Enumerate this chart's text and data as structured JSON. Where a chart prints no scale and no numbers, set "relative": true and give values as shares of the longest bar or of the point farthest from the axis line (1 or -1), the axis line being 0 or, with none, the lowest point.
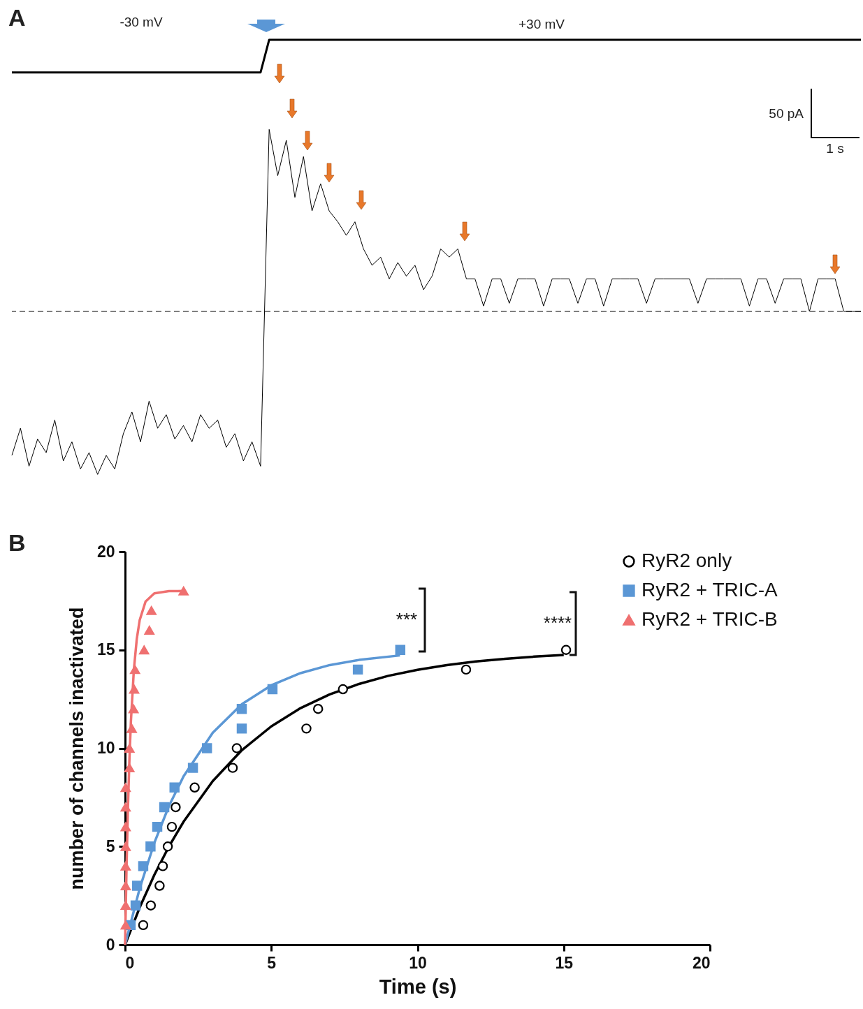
{
  "chart_data": [
    {
      "type": "line",
      "title": "A",
      "relative": true,
      "categories": [
        null,
        null,
        null,
        null,
        null,
        null,
        null,
        null,
        null,
        null,
        null,
        null,
        null,
        null,
        null,
        null,
        null,
        null,
        null,
        null,
        null,
        null,
        null,
        null,
        null,
        null,
        null,
        null,
        null,
        null,
        null,
        null,
        null,
        null,
        null,
        null,
        null,
        null,
        null,
        null,
        null,
        null,
        null,
        null,
        null,
        null,
        null,
        null,
        null,
        null,
        null,
        null,
        null,
        null,
        null,
        null,
        null,
        null,
        null,
        null,
        null,
        null,
        null,
        null,
        null,
        null,
        null,
        null,
        null,
        null,
        null,
        null,
        null,
        null,
        null,
        null,
        null,
        null,
        null,
        null,
        null,
        null,
        null,
        null,
        null,
        null,
        null,
        null,
        null,
        null,
        null,
        null,
        null,
        null,
        null,
        null,
        null,
        null,
        null,
        null
      ],
      "series": [
        {
          "color": "#000000",
          "values": [
            0.88,
            0.88,
            0.88,
            0.88,
            0.88,
            0.88,
            0.88,
            0.88,
            0.88,
            0.88,
            0.88,
            0.88,
            0.88,
            0.88,
            0.88,
            0.88,
            0.88,
            0.88,
            0.88,
            0.88,
            0.88,
            0.88,
            0.88,
            0.88,
            0.88,
            0.88,
            0.88,
            0.88,
            0.88,
            0.88,
            1,
            1,
            1,
            1,
            1,
            1,
            1,
            1,
            1,
            1,
            1,
            1,
            1,
            1,
            1,
            1,
            1,
            1,
            1,
            1,
            1,
            1,
            1,
            1,
            1,
            1,
            1,
            1,
            1,
            1,
            1,
            1,
            1,
            1,
            1,
            1,
            1,
            1,
            1,
            1,
            1,
            1,
            1,
            1,
            1,
            1,
            1,
            1,
            1,
            1,
            1,
            1,
            1,
            1,
            1,
            1,
            1,
            1,
            1,
            1,
            1,
            1,
            1,
            1,
            1,
            1,
            1,
            1,
            1,
            1
          ]
        },
        {
          "color": "#000000",
          "values": [
            -0.53,
            -0.43,
            -0.57,
            -0.47,
            -0.52,
            -0.4,
            -0.55,
            -0.48,
            -0.58,
            -0.52,
            -0.6,
            -0.53,
            -0.58,
            -0.45,
            -0.37,
            -0.48,
            -0.33,
            -0.43,
            -0.38,
            -0.47,
            -0.42,
            -0.48,
            -0.38,
            -0.43,
            -0.4,
            -0.5,
            -0.45,
            -0.55,
            -0.48,
            -0.57,
            0.67,
            0.5,
            0.63,
            0.42,
            0.57,
            0.37,
            0.47,
            0.37,
            0.33,
            0.28,
            0.33,
            0.23,
            0.17,
            0.2,
            0.12,
            0.18,
            0.13,
            0.17,
            0.08,
            0.13,
            0.23,
            0.2,
            0.23,
            0.12,
            0.12,
            0.02,
            0.12,
            0.12,
            0.03,
            0.12,
            0.12,
            0.12,
            0.02,
            0.12,
            0.12,
            0.12,
            0.03,
            0.12,
            0.12,
            0.02,
            0.12,
            0.12,
            0.12,
            0.12,
            0.03,
            0.12,
            0.12,
            0.12,
            0.12,
            0.12,
            0.03,
            0.12,
            0.12,
            0.12,
            0.12,
            0.12,
            0.02,
            0.12,
            0.12,
            0.03,
            0.12,
            0.12,
            0.12,
            0,
            0.12,
            0.12,
            0.12,
            0,
            0,
            0
          ]
        }
      ],
      "ref_lines": [
        {
          "axis": "y",
          "value": 0,
          "line_style": "dashed",
          "color": "#000000"
        }
      ],
      "annotations": [
        "-30 mV",
        "+30 mV",
        "50 pA",
        "1 s"
      ]
    },
    {
      "type": "scatter",
      "title": "B",
      "xlabel": "Time (s)",
      "ylabel": "number of channels inactivated",
      "xlim": [
        0,
        20
      ],
      "ylim": [
        0,
        20
      ],
      "xticks": [
        0,
        5,
        10,
        15,
        20
      ],
      "yticks": [
        0,
        5,
        10,
        15,
        20
      ],
      "grid": false,
      "legend": "top right",
      "series": [
        {
          "name": "RyR2 only",
          "type": "scatter",
          "marker": "circle",
          "color": "#000000",
          "x": [
            0.62,
            0.88,
            1.18,
            1.29,
            1.46,
            1.6,
            1.73,
            2.38,
            3.68,
            3.82,
            6.2,
            6.6,
            7.45,
            11.66,
            15.08
          ],
          "values": [
            1,
            2,
            3,
            4,
            5,
            6,
            7,
            8,
            9,
            10,
            11,
            12,
            13,
            14,
            15
          ]
        },
        {
          "name": "RyR2 + TRIC-A",
          "type": "scatter",
          "marker": "square",
          "color": "#5b97d5",
          "x": [
            0.19,
            0.36,
            0.41,
            0.62,
            0.87,
            1.1,
            1.34,
            1.69,
            2.32,
            2.8,
            3.99,
            3.99,
            5.04,
            7.96,
            9.41
          ],
          "values": [
            1,
            2,
            3,
            4,
            5,
            6,
            7,
            8,
            9,
            10,
            11,
            12,
            13,
            14,
            15
          ]
        },
        {
          "name": "RyR2 + TRIC-B",
          "type": "scatter",
          "marker": "triangle",
          "color": "#ef7070",
          "x": [
            0.02,
            0.02,
            0.02,
            0.02,
            0.02,
            0.02,
            0.02,
            0.02,
            0.15,
            0.15,
            0.23,
            0.29,
            0.31,
            0.34,
            0.65,
            0.83,
            0.9,
            2.0
          ],
          "values": [
            1,
            2,
            3,
            4,
            5,
            6,
            7,
            8,
            9,
            10,
            11,
            12,
            13,
            14,
            15,
            16,
            17,
            18
          ]
        },
        {
          "type": "line",
          "marker": "none",
          "color": "#000000",
          "x": [
            0,
            0.5,
            1,
            1.5,
            2,
            3,
            4,
            5,
            6,
            7,
            8,
            9,
            10,
            11,
            12,
            13,
            14,
            15
          ],
          "values": [
            0,
            1.9,
            3.55,
            5,
            6.26,
            8.33,
            9.91,
            11.11,
            12.04,
            12.74,
            13.27,
            13.68,
            13.99,
            14.23,
            14.41,
            14.55,
            14.66,
            14.74
          ]
        },
        {
          "type": "line",
          "marker": "none",
          "color": "#5b97d5",
          "x": [
            0,
            0.5,
            1,
            1.5,
            2,
            3,
            4,
            5,
            6,
            7,
            8,
            9.4
          ],
          "values": [
            0,
            2.87,
            5.18,
            7.06,
            8.57,
            10.79,
            12.25,
            13.2,
            13.82,
            14.23,
            14.49,
            14.72
          ]
        },
        {
          "type": "line",
          "marker": "none",
          "color": "#ef7070",
          "x": [
            0,
            0.05,
            0.1,
            0.15,
            0.2,
            0.3,
            0.4,
            0.5,
            0.7,
            1,
            1.5,
            2.05
          ],
          "values": [
            0,
            3.98,
            7.08,
            9.5,
            11.38,
            13.98,
            15.56,
            16.52,
            17.46,
            17.88,
            17.99,
            18
          ]
        }
      ],
      "annotations": [
        "***",
        "****"
      ]
    }
  ]
}
